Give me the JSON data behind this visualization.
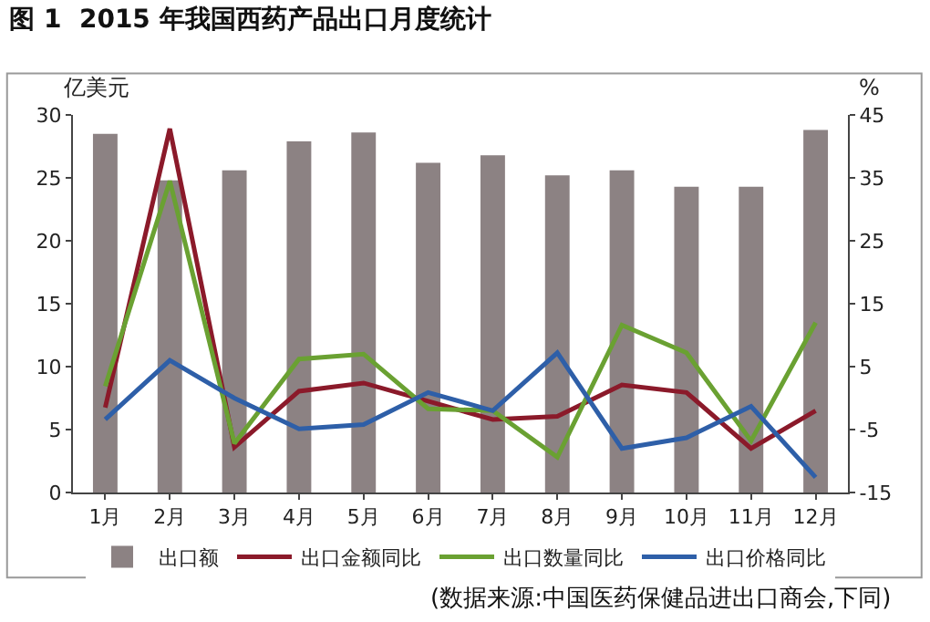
{
  "chart_data": {
    "type": "bar",
    "title": "图 1  2015 年我国西药产品出口月度统计",
    "ylabel": "亿美元",
    "y2label": "%",
    "categories": [
      "1月",
      "2月",
      "3月",
      "4月",
      "5月",
      "6月",
      "7月",
      "8月",
      "9月",
      "10月",
      "11月",
      "12月"
    ],
    "series": [
      {
        "name": "出口额",
        "color": "#8c8283",
        "values": [
          28.5,
          24.8,
          25.6,
          27.9,
          28.6,
          26.2,
          26.8,
          25.2,
          25.6,
          24.3,
          24.3,
          28.8
        ]
      },
      {
        "name": "出口金额同比",
        "type": "line",
        "axis": "y2",
        "color": "#8b1a2a",
        "values": [
          -1.5,
          42.8,
          -7.8,
          1.1,
          2.4,
          -0.5,
          -3.4,
          -2.9,
          2.1,
          0.9,
          -8.0,
          -2.0
        ]
      },
      {
        "name": "出口数量同比",
        "type": "line",
        "axis": "y2",
        "color": "#6aa132",
        "values": [
          1.9,
          34.5,
          -7.2,
          6.2,
          7.0,
          -1.7,
          -2.0,
          -9.4,
          11.6,
          7.2,
          -6.8,
          12.0
        ]
      },
      {
        "name": "出口价格同比",
        "type": "line",
        "axis": "y2",
        "color": "#2e5fa8",
        "values": [
          -3.4,
          6.0,
          0.0,
          -4.9,
          -4.2,
          0.9,
          -2.0,
          7.2,
          -8.0,
          -6.3,
          -1.3,
          -12.6
        ]
      }
    ],
    "ylim": [
      0,
      30
    ],
    "yticks": [
      0,
      5,
      10,
      15,
      20,
      25,
      30
    ],
    "y2lim": [
      -15,
      45
    ],
    "y2ticks": [
      -15,
      -5,
      5,
      15,
      25,
      35,
      45
    ],
    "grid": false,
    "legend": "bottom",
    "marker": "none",
    "annotations": [
      "(数据来源:中国医药保健品进出口商会,下同)"
    ]
  }
}
